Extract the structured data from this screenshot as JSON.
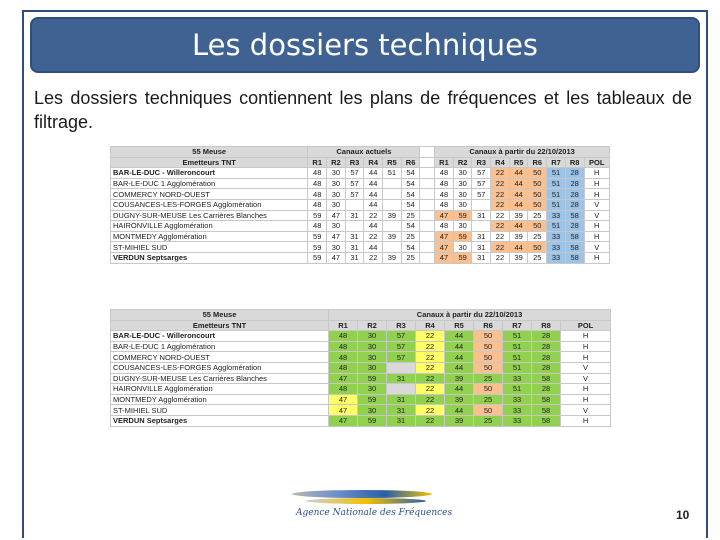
{
  "slide": {
    "title": "Les dossiers techniques",
    "intro": "Les dossiers techniques contiennent les plans de fréquences et les tableaux de filtrage.",
    "page_number": "10",
    "logo_text": "Agence Nationale des Fréquences"
  },
  "table1": {
    "dept": "55 Meuse",
    "group_current": "Canaux actuels",
    "group_future": "Canaux à partir du 22/10/2013",
    "emitter_header": "Emetteurs TNT",
    "cur_headers": [
      "R1",
      "R2",
      "R3",
      "R4",
      "R5",
      "R6"
    ],
    "fut_headers": [
      "R1",
      "R2",
      "R3",
      "R4",
      "R5",
      "R6",
      "R7",
      "R8",
      "POL"
    ],
    "rows": [
      {
        "name": "BAR-LE-DUC - Willeroncourt",
        "bold": true,
        "cur": [
          "48",
          "30",
          "57",
          "44",
          "51",
          "54"
        ],
        "fut": [
          [
            "48",
            "w"
          ],
          [
            "30",
            "w"
          ],
          [
            "57",
            "w"
          ],
          [
            "22",
            "o"
          ],
          [
            "44",
            "o"
          ],
          [
            "50",
            "o"
          ],
          [
            "51",
            "b"
          ],
          [
            "28",
            "b"
          ],
          [
            "H",
            "w"
          ]
        ]
      },
      {
        "name": "BAR-LE-DUC 1 Agglomération",
        "bold": false,
        "cur": [
          "48",
          "30",
          "57",
          "44",
          "",
          "54"
        ],
        "fut": [
          [
            "48",
            "w"
          ],
          [
            "30",
            "w"
          ],
          [
            "57",
            "w"
          ],
          [
            "22",
            "o"
          ],
          [
            "44",
            "o"
          ],
          [
            "50",
            "o"
          ],
          [
            "51",
            "b"
          ],
          [
            "28",
            "b"
          ],
          [
            "H",
            "w"
          ]
        ]
      },
      {
        "name": "COMMERCY NORD-OUEST",
        "bold": false,
        "cur": [
          "48",
          "30",
          "57",
          "44",
          "",
          "54"
        ],
        "fut": [
          [
            "48",
            "w"
          ],
          [
            "30",
            "w"
          ],
          [
            "57",
            "w"
          ],
          [
            "22",
            "o"
          ],
          [
            "44",
            "o"
          ],
          [
            "50",
            "o"
          ],
          [
            "51",
            "b"
          ],
          [
            "28",
            "b"
          ],
          [
            "H",
            "w"
          ]
        ]
      },
      {
        "name": "COUSANCES-LES-FORGES Agglomération",
        "bold": false,
        "cur": [
          "48",
          "30",
          "",
          "44",
          "",
          "54"
        ],
        "fut": [
          [
            "48",
            "w"
          ],
          [
            "30",
            "w"
          ],
          [
            "",
            "w"
          ],
          [
            "22",
            "o"
          ],
          [
            "44",
            "o"
          ],
          [
            "50",
            "o"
          ],
          [
            "51",
            "b"
          ],
          [
            "28",
            "b"
          ],
          [
            "V",
            "w"
          ]
        ]
      },
      {
        "name": "DUGNY-SUR-MEUSE Les Carrières Blanches",
        "bold": false,
        "cur": [
          "59",
          "47",
          "31",
          "22",
          "39",
          "25"
        ],
        "fut": [
          [
            "47",
            "o"
          ],
          [
            "59",
            "o"
          ],
          [
            "31",
            "w"
          ],
          [
            "22",
            "w"
          ],
          [
            "39",
            "w"
          ],
          [
            "25",
            "w"
          ],
          [
            "33",
            "b"
          ],
          [
            "58",
            "b"
          ],
          [
            "V",
            "w"
          ]
        ]
      },
      {
        "name": "HAIRONVILLE Agglomération",
        "bold": false,
        "cur": [
          "48",
          "30",
          "",
          "44",
          "",
          "54"
        ],
        "fut": [
          [
            "48",
            "w"
          ],
          [
            "30",
            "w"
          ],
          [
            "",
            "w"
          ],
          [
            "22",
            "o"
          ],
          [
            "44",
            "o"
          ],
          [
            "50",
            "o"
          ],
          [
            "51",
            "b"
          ],
          [
            "28",
            "b"
          ],
          [
            "H",
            "w"
          ]
        ]
      },
      {
        "name": "MONTMEDY Agglomération",
        "bold": false,
        "cur": [
          "59",
          "47",
          "31",
          "22",
          "39",
          "25"
        ],
        "fut": [
          [
            "47",
            "o"
          ],
          [
            "59",
            "o"
          ],
          [
            "31",
            "w"
          ],
          [
            "22",
            "w"
          ],
          [
            "39",
            "w"
          ],
          [
            "25",
            "w"
          ],
          [
            "33",
            "b"
          ],
          [
            "58",
            "b"
          ],
          [
            "H",
            "w"
          ]
        ]
      },
      {
        "name": "ST-MIHIEL SUD",
        "bold": false,
        "cur": [
          "59",
          "30",
          "31",
          "44",
          "",
          "54"
        ],
        "fut": [
          [
            "47",
            "o"
          ],
          [
            "30",
            "w"
          ],
          [
            "31",
            "w"
          ],
          [
            "22",
            "o"
          ],
          [
            "44",
            "o"
          ],
          [
            "50",
            "o"
          ],
          [
            "33",
            "b"
          ],
          [
            "58",
            "b"
          ],
          [
            "V",
            "w"
          ]
        ]
      },
      {
        "name": "VERDUN Septsarges",
        "bold": true,
        "cur": [
          "59",
          "47",
          "31",
          "22",
          "39",
          "25"
        ],
        "fut": [
          [
            "47",
            "o"
          ],
          [
            "59",
            "o"
          ],
          [
            "31",
            "w"
          ],
          [
            "22",
            "w"
          ],
          [
            "39",
            "w"
          ],
          [
            "25",
            "w"
          ],
          [
            "33",
            "b"
          ],
          [
            "58",
            "b"
          ],
          [
            "H",
            "w"
          ]
        ]
      }
    ]
  },
  "table2": {
    "dept": "55 Meuse",
    "group_future": "Canaux à partir du 22/10/2013",
    "emitter_header": "Emetteurs TNT",
    "fut_headers": [
      "R1",
      "R2",
      "R3",
      "R4",
      "R5",
      "R6",
      "R7",
      "R8",
      "POL"
    ],
    "rows": [
      {
        "name": "BAR-LE-DUC - Willeroncourt",
        "bold": true,
        "fut": [
          [
            "48",
            "g"
          ],
          [
            "30",
            "g"
          ],
          [
            "57",
            "g"
          ],
          [
            "22",
            "y"
          ],
          [
            "44",
            "g"
          ],
          [
            "50",
            "o"
          ],
          [
            "51",
            "g"
          ],
          [
            "28",
            "g"
          ],
          [
            "H",
            "w"
          ]
        ]
      },
      {
        "name": "BAR-LE-DUC 1 Agglomération",
        "bold": false,
        "fut": [
          [
            "48",
            "g"
          ],
          [
            "30",
            "g"
          ],
          [
            "57",
            "g"
          ],
          [
            "22",
            "y"
          ],
          [
            "44",
            "g"
          ],
          [
            "50",
            "o"
          ],
          [
            "51",
            "g"
          ],
          [
            "28",
            "g"
          ],
          [
            "H",
            "w"
          ]
        ]
      },
      {
        "name": "COMMERCY NORD-OUEST",
        "bold": false,
        "fut": [
          [
            "48",
            "g"
          ],
          [
            "30",
            "g"
          ],
          [
            "57",
            "g"
          ],
          [
            "22",
            "y"
          ],
          [
            "44",
            "g"
          ],
          [
            "50",
            "o"
          ],
          [
            "51",
            "g"
          ],
          [
            "28",
            "g"
          ],
          [
            "H",
            "w"
          ]
        ]
      },
      {
        "name": "COUSANCES-LES-FORGES Agglomération",
        "bold": false,
        "fut": [
          [
            "48",
            "g"
          ],
          [
            "30",
            "g"
          ],
          [
            "",
            "gr"
          ],
          [
            "22",
            "y"
          ],
          [
            "44",
            "g"
          ],
          [
            "50",
            "o"
          ],
          [
            "51",
            "g"
          ],
          [
            "28",
            "g"
          ],
          [
            "V",
            "w"
          ]
        ]
      },
      {
        "name": "DUGNY-SUR-MEUSE Les Carrières Blanches",
        "bold": false,
        "fut": [
          [
            "47",
            "g"
          ],
          [
            "59",
            "g"
          ],
          [
            "31",
            "g"
          ],
          [
            "22",
            "g"
          ],
          [
            "39",
            "g"
          ],
          [
            "25",
            "g"
          ],
          [
            "33",
            "g"
          ],
          [
            "58",
            "g"
          ],
          [
            "V",
            "w"
          ]
        ]
      },
      {
        "name": "HAIRONVILLE Agglomération",
        "bold": false,
        "fut": [
          [
            "48",
            "g"
          ],
          [
            "30",
            "g"
          ],
          [
            "",
            "gr"
          ],
          [
            "22",
            "y"
          ],
          [
            "44",
            "g"
          ],
          [
            "50",
            "o"
          ],
          [
            "51",
            "g"
          ],
          [
            "28",
            "g"
          ],
          [
            "H",
            "w"
          ]
        ]
      },
      {
        "name": "MONTMEDY Agglomération",
        "bold": false,
        "fut": [
          [
            "47",
            "y"
          ],
          [
            "59",
            "g"
          ],
          [
            "31",
            "g"
          ],
          [
            "22",
            "g"
          ],
          [
            "39",
            "g"
          ],
          [
            "25",
            "g"
          ],
          [
            "33",
            "g"
          ],
          [
            "58",
            "g"
          ],
          [
            "H",
            "w"
          ]
        ]
      },
      {
        "name": "ST-MIHIEL SUD",
        "bold": false,
        "fut": [
          [
            "47",
            "y"
          ],
          [
            "30",
            "g"
          ],
          [
            "31",
            "g"
          ],
          [
            "22",
            "y"
          ],
          [
            "44",
            "g"
          ],
          [
            "50",
            "o"
          ],
          [
            "33",
            "g"
          ],
          [
            "58",
            "g"
          ],
          [
            "V",
            "w"
          ]
        ]
      },
      {
        "name": "VERDUN Septsarges",
        "bold": true,
        "fut": [
          [
            "47",
            "g"
          ],
          [
            "59",
            "g"
          ],
          [
            "31",
            "g"
          ],
          [
            "22",
            "g"
          ],
          [
            "39",
            "g"
          ],
          [
            "25",
            "g"
          ],
          [
            "33",
            "g"
          ],
          [
            "58",
            "g"
          ],
          [
            "H",
            "w"
          ]
        ]
      }
    ]
  },
  "colors": {
    "title_bar": "#3f6293",
    "frame": "#2f4f7a",
    "green": "#92d050",
    "yellow": "#ffff66",
    "orange": "#fac090",
    "blue": "#9dc3e6",
    "grey": "#d9d9d9"
  }
}
